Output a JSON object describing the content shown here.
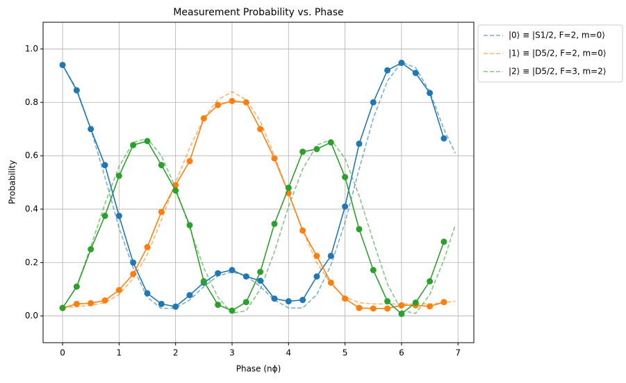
{
  "chart_data": {
    "type": "line",
    "title": "Measurement Probability vs. Phase",
    "xlabel": "Phase (nϕ)",
    "ylabel": "Probability",
    "xlim": [
      -0.345,
      7.28
    ],
    "ylim": [
      -0.1,
      1.1
    ],
    "xticks": [
      0,
      1,
      2,
      3,
      4,
      5,
      6,
      7
    ],
    "yticks": [
      {
        "value": 0,
        "label": "0.0"
      },
      {
        "value": 0.2,
        "label": "0.2"
      },
      {
        "value": 0.4,
        "label": "0.4"
      },
      {
        "value": 0.6,
        "label": "0.6"
      },
      {
        "value": 0.8,
        "label": "0.8"
      },
      {
        "value": 1.0,
        "label": "1.0"
      }
    ],
    "grid": true,
    "legend": "outside upper right",
    "x": [
      0,
      0.25,
      0.5,
      0.75,
      1,
      1.25,
      1.5,
      1.75,
      2,
      2.25,
      2.5,
      2.75,
      3,
      3.25,
      3.5,
      3.75,
      4,
      4.25,
      4.5,
      4.75,
      5,
      5.25,
      5.5,
      5.75,
      6,
      6.25,
      6.5,
      6.75
    ],
    "series": [
      {
        "color": "#1f77b4",
        "values": [
          0.94,
          0.845,
          0.7,
          0.565,
          0.375,
          0.2,
          0.085,
          0.045,
          0.035,
          0.078,
          0.125,
          0.16,
          0.172,
          0.148,
          0.132,
          0.065,
          0.055,
          0.06,
          0.148,
          0.225,
          0.41,
          0.645,
          0.8,
          0.92,
          0.948,
          0.91,
          0.835,
          0.665
        ]
      },
      {
        "color": "#ff7f0e",
        "values": [
          0.03,
          0.045,
          0.048,
          0.058,
          0.097,
          0.157,
          0.258,
          0.39,
          0.49,
          0.58,
          0.74,
          0.79,
          0.805,
          0.8,
          0.7,
          0.59,
          0.46,
          0.32,
          0.225,
          0.125,
          0.065,
          0.03,
          0.028,
          0.028,
          0.04,
          0.04,
          0.036,
          0.052
        ]
      },
      {
        "color": "#2ca02c",
        "values": [
          0.03,
          0.11,
          0.25,
          0.375,
          0.525,
          0.64,
          0.655,
          0.565,
          0.47,
          0.34,
          0.13,
          0.042,
          0.02,
          0.052,
          0.165,
          0.345,
          0.48,
          0.615,
          0.625,
          0.65,
          0.52,
          0.325,
          0.172,
          0.055,
          0.008,
          0.05,
          0.13,
          0.278
        ]
      }
    ],
    "fit_x": [
      0,
      0.25,
      0.5,
      0.75,
      1,
      1.25,
      1.5,
      1.75,
      2,
      2.25,
      2.5,
      2.75,
      3,
      3.25,
      3.5,
      3.75,
      4,
      4.25,
      4.5,
      4.75,
      5,
      5.25,
      5.5,
      5.75,
      6,
      6.25,
      6.5,
      6.75,
      6.95
    ],
    "fits": [
      {
        "name": "|0⟩ ≡ |S1/2, F=2, m=0⟩",
        "color": "#1f77b4",
        "values": [
          0.94,
          0.85,
          0.7,
          0.52,
          0.33,
          0.18,
          0.07,
          0.028,
          0.03,
          0.06,
          0.11,
          0.15,
          0.165,
          0.15,
          0.11,
          0.06,
          0.03,
          0.03,
          0.08,
          0.19,
          0.35,
          0.55,
          0.74,
          0.88,
          0.95,
          0.93,
          0.84,
          0.7,
          0.61
        ]
      },
      {
        "name": "|1⟩ ≡ |D5/2, F=2, m=0⟩",
        "color": "#ff7f0e",
        "values": [
          0.03,
          0.035,
          0.04,
          0.05,
          0.08,
          0.14,
          0.23,
          0.36,
          0.5,
          0.63,
          0.74,
          0.81,
          0.84,
          0.81,
          0.73,
          0.6,
          0.46,
          0.32,
          0.2,
          0.12,
          0.07,
          0.05,
          0.045,
          0.045,
          0.045,
          0.045,
          0.045,
          0.05,
          0.055
        ]
      },
      {
        "name": "|2⟩ ≡ |D5/2, F=3, m=2⟩",
        "color": "#2ca02c",
        "values": [
          0.03,
          0.11,
          0.26,
          0.42,
          0.56,
          0.65,
          0.665,
          0.6,
          0.48,
          0.33,
          0.18,
          0.07,
          0.01,
          0.02,
          0.1,
          0.24,
          0.41,
          0.55,
          0.64,
          0.66,
          0.59,
          0.45,
          0.28,
          0.12,
          0.02,
          0.01,
          0.08,
          0.21,
          0.34
        ]
      }
    ]
  }
}
